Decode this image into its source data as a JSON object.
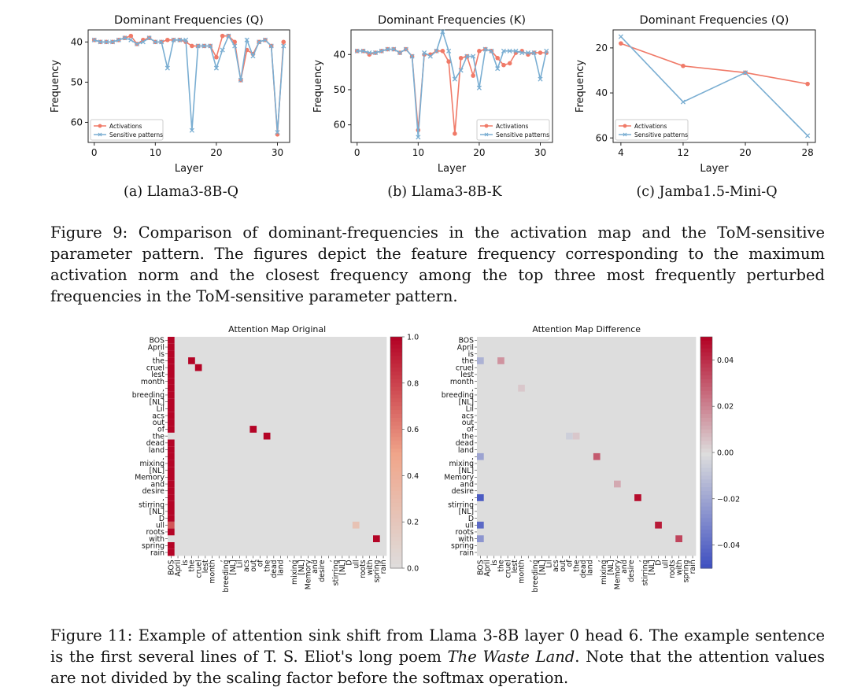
{
  "figure9": {
    "panels": [
      {
        "id": "a",
        "title": "Dominant Frequencies (Q)",
        "xlabel": "Layer",
        "ylabel": "Frequency",
        "subcaption": "(a) Llama3-8B-Q"
      },
      {
        "id": "b",
        "title": "Dominant Frequencies (K)",
        "xlabel": "Layer",
        "ylabel": "Frequency",
        "subcaption": "(b) Llama3-8B-K"
      },
      {
        "id": "c",
        "title": "Dominant Frequencies (Q)",
        "xlabel": "Layer",
        "ylabel": "Frequency",
        "subcaption": "(c) Jamba1.5-Mini-Q"
      }
    ],
    "legend": [
      "Activations",
      "Sensitive patterns"
    ],
    "caption": "Figure 9: Comparison of dominant-frequencies in the activation map and the ToM-sensitive parameter pattern. The figures depict the feature frequency corresponding to the maximum activation norm and the closest frequency among the top three most frequently perturbed frequencies in the ToM-sensitive parameter pattern."
  },
  "figure11": {
    "caption_pre": "Figure 11: Example of attention sink shift from Llama 3-8B layer 0 head 6. The example sentence is the first several lines of T. S. Eliot's long poem ",
    "caption_italic": "The Waste Land",
    "caption_post": ". Note that the attention values are not divided by the scaling factor before the softmax operation."
  },
  "chart_data": [
    {
      "type": "line",
      "title": "Dominant Frequencies (Q)",
      "xlabel": "Layer",
      "ylabel": "Frequency",
      "xlim": [
        -1,
        32
      ],
      "ylim": [
        65,
        37
      ],
      "xticks": [
        0,
        10,
        20,
        30
      ],
      "yticks": [
        40,
        50,
        60
      ],
      "legend_position": "lower-left",
      "series": [
        {
          "name": "Activations",
          "color": "#f07a68",
          "x": [
            0,
            1,
            2,
            3,
            4,
            5,
            6,
            7,
            8,
            9,
            10,
            11,
            12,
            13,
            14,
            15,
            16,
            17,
            18,
            19,
            20,
            21,
            22,
            23,
            24,
            25,
            26,
            27,
            28,
            29,
            30,
            31
          ],
          "y": [
            39.5,
            40,
            40,
            40,
            39.5,
            39,
            38.5,
            40.5,
            39.5,
            39,
            40,
            40,
            39.5,
            39.5,
            39.5,
            40,
            41,
            41,
            41,
            41,
            43.8,
            38.5,
            38.5,
            40,
            49.5,
            42,
            43,
            40,
            39.5,
            41,
            63,
            40
          ]
        },
        {
          "name": "Sensitive patterns",
          "color": "#7aaed2",
          "x": [
            0,
            1,
            2,
            3,
            4,
            5,
            6,
            7,
            8,
            9,
            10,
            11,
            12,
            13,
            14,
            15,
            16,
            17,
            18,
            19,
            20,
            21,
            22,
            23,
            24,
            25,
            26,
            27,
            28,
            29,
            30,
            31
          ],
          "y": [
            39.5,
            40,
            40,
            40,
            39.5,
            39,
            39.5,
            40.5,
            40,
            39,
            40,
            40,
            46.5,
            39.5,
            39.5,
            39.5,
            62,
            41,
            41,
            41,
            46.5,
            42,
            38.5,
            41,
            49.5,
            39.5,
            43.5,
            40,
            39.5,
            41,
            62.5,
            41
          ]
        }
      ]
    },
    {
      "type": "line",
      "title": "Dominant Frequencies (K)",
      "xlabel": "Layer",
      "ylabel": "Frequency",
      "xlim": [
        -1,
        32
      ],
      "ylim": [
        65,
        33
      ],
      "xticks": [
        0,
        10,
        20,
        30
      ],
      "yticks": [
        40,
        50,
        60
      ],
      "legend_position": "lower-right",
      "series": [
        {
          "name": "Activations",
          "color": "#f07a68",
          "x": [
            0,
            1,
            2,
            3,
            4,
            5,
            6,
            7,
            8,
            9,
            10,
            11,
            12,
            13,
            14,
            15,
            16,
            17,
            18,
            19,
            20,
            21,
            22,
            23,
            24,
            25,
            26,
            27,
            28,
            29,
            30,
            31
          ],
          "y": [
            39,
            39,
            40,
            39.5,
            39,
            38.5,
            38.5,
            39.5,
            38.5,
            40.5,
            61.5,
            40,
            40,
            39,
            39,
            42,
            62.5,
            41,
            40.5,
            46,
            39,
            38.5,
            39,
            41,
            43,
            42.5,
            39.5,
            39,
            40,
            39.5,
            39.5,
            39.5
          ]
        },
        {
          "name": "Sensitive patterns",
          "color": "#7aaed2",
          "x": [
            0,
            1,
            2,
            3,
            4,
            5,
            6,
            7,
            8,
            9,
            10,
            11,
            12,
            13,
            14,
            15,
            16,
            17,
            18,
            19,
            20,
            21,
            22,
            23,
            24,
            25,
            26,
            27,
            28,
            29,
            30,
            31
          ],
          "y": [
            39,
            39,
            39.5,
            39.5,
            39,
            38.5,
            38.5,
            39.5,
            38.5,
            40.5,
            63.5,
            39.5,
            40.5,
            39,
            33.5,
            39,
            47,
            44.5,
            40.5,
            40.5,
            49.5,
            38.5,
            39,
            44,
            39,
            39,
            39,
            39.5,
            39.5,
            39.5,
            47,
            39
          ]
        }
      ]
    },
    {
      "type": "line",
      "title": "Dominant Frequencies (Q)",
      "xlabel": "Layer",
      "ylabel": "Frequency",
      "xlim": [
        3,
        29
      ],
      "ylim": [
        62,
        12
      ],
      "xticks": [
        4,
        12,
        20,
        28
      ],
      "yticks": [
        20,
        40,
        60
      ],
      "legend_position": "lower-left",
      "series": [
        {
          "name": "Activations",
          "color": "#f07a68",
          "x": [
            4,
            12,
            20,
            28
          ],
          "y": [
            18,
            28,
            31,
            36
          ]
        },
        {
          "name": "Sensitive patterns",
          "color": "#7aaed2",
          "x": [
            4,
            12,
            20,
            28
          ],
          "y": [
            15,
            44,
            31,
            59
          ]
        }
      ]
    },
    {
      "type": "heatmap",
      "title": "Attention Map Original",
      "tokens": [
        "BOS",
        "April",
        "is",
        "the",
        "cruel",
        "lest",
        "month",
        ",",
        "breeding",
        "[NL]",
        "Lil",
        "acs",
        "out",
        "of",
        "the",
        "dead",
        "land",
        ",",
        "mixing",
        "[NL]",
        "Memory",
        "and",
        "desire",
        ",",
        "stirring",
        "[NL]",
        "D",
        "ull",
        "roots",
        "with",
        "spring",
        "rain"
      ],
      "colorbar_ticks": [
        0.0,
        0.2,
        0.4,
        0.6,
        0.8,
        1.0
      ],
      "colorbar_range": [
        0,
        1
      ],
      "cells": [
        {
          "row": 0,
          "col": 0,
          "v": 1.0
        },
        {
          "row": 1,
          "col": 0,
          "v": 1.0
        },
        {
          "row": 2,
          "col": 0,
          "v": 1.0
        },
        {
          "row": 3,
          "col": 0,
          "v": 1.0
        },
        {
          "row": 4,
          "col": 0,
          "v": 1.0
        },
        {
          "row": 5,
          "col": 0,
          "v": 1.0
        },
        {
          "row": 6,
          "col": 0,
          "v": 1.0
        },
        {
          "row": 7,
          "col": 0,
          "v": 1.0
        },
        {
          "row": 8,
          "col": 0,
          "v": 1.0
        },
        {
          "row": 9,
          "col": 0,
          "v": 1.0
        },
        {
          "row": 10,
          "col": 0,
          "v": 1.0
        },
        {
          "row": 11,
          "col": 0,
          "v": 1.0
        },
        {
          "row": 12,
          "col": 0,
          "v": 1.0
        },
        {
          "row": 13,
          "col": 0,
          "v": 1.0
        },
        {
          "row": 15,
          "col": 0,
          "v": 1.0
        },
        {
          "row": 16,
          "col": 0,
          "v": 1.0
        },
        {
          "row": 17,
          "col": 0,
          "v": 1.0
        },
        {
          "row": 18,
          "col": 0,
          "v": 1.0
        },
        {
          "row": 19,
          "col": 0,
          "v": 1.0
        },
        {
          "row": 20,
          "col": 0,
          "v": 1.0
        },
        {
          "row": 21,
          "col": 0,
          "v": 1.0
        },
        {
          "row": 22,
          "col": 0,
          "v": 1.0
        },
        {
          "row": 23,
          "col": 0,
          "v": 1.0
        },
        {
          "row": 24,
          "col": 0,
          "v": 1.0
        },
        {
          "row": 25,
          "col": 0,
          "v": 1.0
        },
        {
          "row": 26,
          "col": 0,
          "v": 1.0
        },
        {
          "row": 27,
          "col": 0,
          "v": 0.75
        },
        {
          "row": 28,
          "col": 0,
          "v": 1.0
        },
        {
          "row": 30,
          "col": 0,
          "v": 1.0
        },
        {
          "row": 31,
          "col": 0,
          "v": 1.0
        },
        {
          "row": 3,
          "col": 3,
          "v": 1.0
        },
        {
          "row": 4,
          "col": 4,
          "v": 1.0
        },
        {
          "row": 13,
          "col": 12,
          "v": 1.0
        },
        {
          "row": 14,
          "col": 14,
          "v": 1.0
        },
        {
          "row": 27,
          "col": 27,
          "v": 0.25
        },
        {
          "row": 29,
          "col": 30,
          "v": 1.0
        }
      ]
    },
    {
      "type": "heatmap",
      "title": "Attention Map Difference",
      "tokens": [
        "BOS",
        "April",
        "is",
        "the",
        "cruel",
        "lest",
        "month",
        ",",
        "breeding",
        "[NL]",
        "Lil",
        "acs",
        "out",
        "of",
        "the",
        "dead",
        "land",
        ",",
        "mixing",
        "[NL]",
        "Memory",
        "and",
        "desire",
        ",",
        "stirring",
        "[NL]",
        "D",
        "ull",
        "roots",
        "with",
        "spring",
        "rain"
      ],
      "colorbar_ticks": [
        -0.04,
        -0.02,
        0.0,
        0.02,
        0.04
      ],
      "colorbar_range": [
        -0.05,
        0.05
      ],
      "cells": [
        {
          "row": 3,
          "col": 0,
          "v": -0.015
        },
        {
          "row": 3,
          "col": 3,
          "v": 0.017
        },
        {
          "row": 7,
          "col": 6,
          "v": 0.005
        },
        {
          "row": 14,
          "col": 13,
          "v": -0.005
        },
        {
          "row": 14,
          "col": 14,
          "v": 0.005
        },
        {
          "row": 17,
          "col": 0,
          "v": -0.02
        },
        {
          "row": 17,
          "col": 17,
          "v": 0.03
        },
        {
          "row": 21,
          "col": 20,
          "v": 0.012
        },
        {
          "row": 23,
          "col": 0,
          "v": -0.045
        },
        {
          "row": 23,
          "col": 23,
          "v": 0.048
        },
        {
          "row": 27,
          "col": 0,
          "v": -0.04
        },
        {
          "row": 27,
          "col": 26,
          "v": 0.045
        },
        {
          "row": 29,
          "col": 0,
          "v": -0.025
        },
        {
          "row": 29,
          "col": 29,
          "v": 0.035
        }
      ]
    }
  ]
}
